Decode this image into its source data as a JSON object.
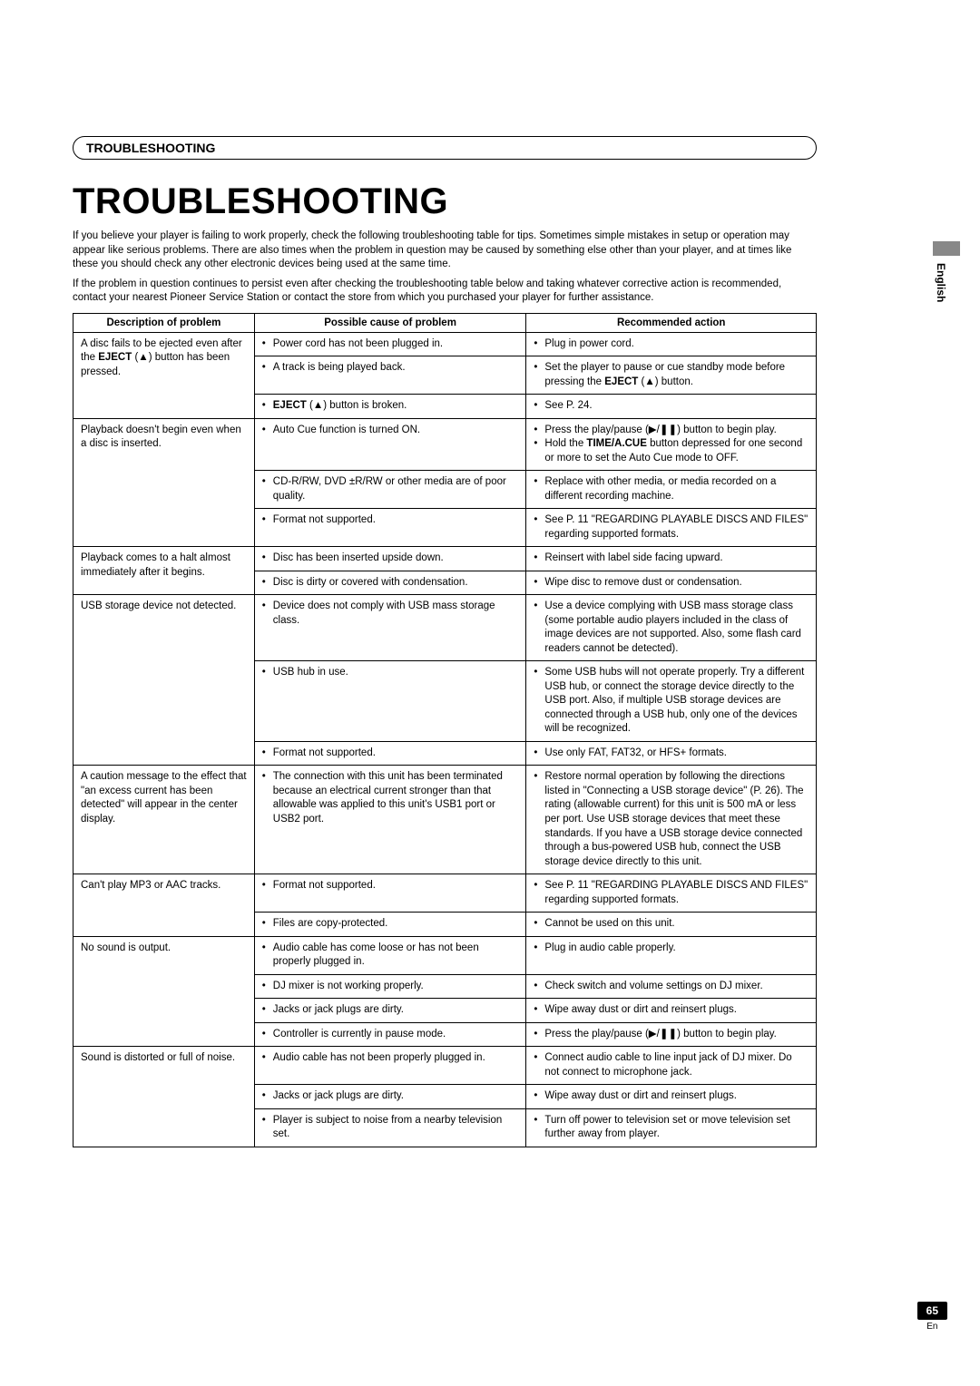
{
  "section_header": "TROUBLESHOOTING",
  "title": "TROUBLESHOOTING",
  "intro1": "If you believe your player is failing to work properly, check the following troubleshooting table for tips. Sometimes simple mistakes in setup or operation may appear like serious problems. There are also times when the problem in question may be caused by something else other than your player, and at times like these you should check any other electronic devices being used at the same time.",
  "intro2": "If the problem in question continues to persist even after checking the troubleshooting table below and taking whatever corrective action is recommended, contact your nearest Pioneer Service Station or contact the store from which you purchased your player for further assistance.",
  "headers": {
    "problem": "Description of problem",
    "cause": "Possible cause of problem",
    "action": "Recommended action"
  },
  "rows": [
    {
      "problem_html": "A disc fails to be ejected even after the <b>EJECT</b> (<span class='eject-sym'>▲</span>) button has been pressed.",
      "problem_rowspan": 3,
      "cause": "Power cord has not been plugged in.",
      "action": "Plug in power cord."
    },
    {
      "cause": "A track is being played back.",
      "action_html": "Set the player to pause or cue standby mode before pressing the <b>EJECT</b> (<span class='eject-sym'>▲</span>) button."
    },
    {
      "cause_html": "<b>EJECT</b> (<span class='eject-sym'>▲</span>) button is broken.",
      "action": "See P. 24."
    },
    {
      "problem": "Playback doesn't begin even when a disc is inserted.",
      "problem_rowspan": 3,
      "cause": "Auto Cue function is turned ON.",
      "action_list": [
        "Press the play/pause (▶/❚❚) button to begin play.",
        "Hold the <b>TIME/A.CUE</b> button depressed for one second or more to set the Auto Cue mode to OFF."
      ]
    },
    {
      "cause": "CD-R/RW, DVD ±R/RW or other media are of poor quality.",
      "action": "Replace with other media, or media recorded on a different recording machine."
    },
    {
      "cause": "Format not supported.",
      "action": "See P. 11 \"REGARDING PLAYABLE DISCS AND FILES\" regarding supported formats."
    },
    {
      "problem": "Playback comes to a halt almost immediately after it begins.",
      "problem_rowspan": 2,
      "cause": "Disc has been inserted upside down.",
      "action": "Reinsert with label side facing upward."
    },
    {
      "cause": "Disc is dirty or covered with condensation.",
      "action": "Wipe disc to remove dust or condensation."
    },
    {
      "problem": "USB storage device not detected.",
      "problem_rowspan": 3,
      "cause": "Device does not comply with USB mass storage class.",
      "action": "Use a device complying with USB mass storage class (some portable audio players included in the class of image devices are not supported. Also, some flash card readers cannot be detected)."
    },
    {
      "cause": "USB hub in use.",
      "action": "Some USB hubs will not operate properly. Try a different USB hub, or connect the storage device directly to the USB port. Also, if multiple USB storage devices are connected through a USB hub, only one of the devices will be recognized."
    },
    {
      "cause": "Format not supported.",
      "action": "Use only FAT, FAT32, or HFS+ formats."
    },
    {
      "problem": "A caution message to the effect that \"an excess current has been detected\" will appear in the center display.",
      "cause": "The connection with this unit has been terminated because an electrical current stronger than that allowable was applied to this unit's USB1 port or USB2 port.",
      "action": "Restore normal operation by following the directions listed in \"Connecting a USB storage device\" (P. 26). The rating (allowable current) for this unit is 500 mA or less per port. Use USB storage devices that meet these standards. If you have a USB storage device connected through a bus-powered USB hub, connect the USB storage device directly to this unit."
    },
    {
      "problem": "Can't play MP3 or AAC tracks.",
      "problem_rowspan": 2,
      "cause": "Format not supported.",
      "action": "See P. 11 \"REGARDING PLAYABLE DISCS AND FILES\" regarding supported formats."
    },
    {
      "cause": "Files are copy-protected.",
      "action": "Cannot be used on this unit."
    },
    {
      "problem": "No sound is output.",
      "problem_rowspan": 4,
      "cause": "Audio cable has come loose or has not been properly plugged in.",
      "action": "Plug in audio cable properly."
    },
    {
      "cause": "DJ mixer is not working properly.",
      "action": "Check switch and volume settings on DJ mixer."
    },
    {
      "cause": "Jacks or jack plugs are dirty.",
      "action": "Wipe away dust or dirt and reinsert plugs."
    },
    {
      "cause": "Controller is currently in pause mode.",
      "action": "Press the play/pause (▶/❚❚) button to begin play."
    },
    {
      "problem": "Sound is distorted or full of noise.",
      "problem_rowspan": 3,
      "cause": "Audio cable has not been properly plugged in.",
      "action": "Connect audio cable to line input jack of DJ mixer. Do not connect to microphone jack."
    },
    {
      "cause": "Jacks or jack plugs are dirty.",
      "action": "Wipe away dust or dirt and reinsert plugs."
    },
    {
      "cause": "Player is subject to noise from a nearby television set.",
      "action": "Turn off power to television set or move television set further away from player."
    }
  ],
  "side_label": "English",
  "page_number": "65",
  "page_lang": "En"
}
